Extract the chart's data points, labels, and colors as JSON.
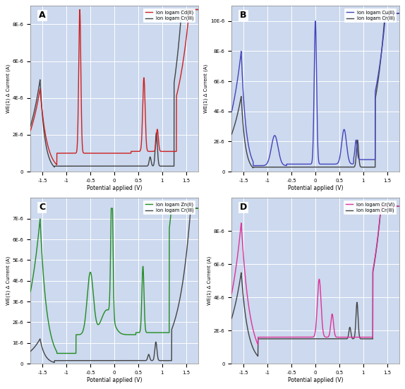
{
  "bg_color": "#ccd9ee",
  "grid_color": "#ffffff",
  "xlim": [
    -1.75,
    1.75
  ],
  "xlabel": "Potential applied (V)",
  "ylabel": "WE(1) Δ Current (A)",
  "panels": [
    {
      "label": "A",
      "line1_color": "#cc2222",
      "line1_label": "Ion logam Cd(II)",
      "line2_color": "#444444",
      "line2_label": "Ion logam Cr(III)",
      "ylim": [
        0,
        9e-06
      ],
      "yticks": [
        0,
        2e-06,
        4e-06,
        6e-06,
        8e-06
      ],
      "ytick_labels": [
        "0",
        "2E-6",
        "4E-6",
        "6E-6",
        "8E-6"
      ]
    },
    {
      "label": "B",
      "line1_color": "#4444bb",
      "line1_label": "Ion logam Cu(II)",
      "line2_color": "#444444",
      "line2_label": "Ion logam Cr(III)",
      "ylim": [
        0,
        1.1e-05
      ],
      "yticks": [
        0,
        2e-06,
        4e-06,
        6e-06,
        8e-06,
        1e-05
      ],
      "ytick_labels": [
        "0",
        "2E-6",
        "4E-6",
        "6E-6",
        "8E-6",
        "10E-6"
      ]
    },
    {
      "label": "C",
      "line1_color": "#228B22",
      "line1_label": "Ion logam Zn(II)",
      "line2_color": "#444444",
      "line2_label": "Ion logam Cr(III)",
      "ylim": [
        0,
        8e-06
      ],
      "yticks": [
        0,
        1e-06,
        2e-06,
        3e-06,
        4e-06,
        5e-06,
        6e-06,
        7e-06
      ],
      "ytick_labels": [
        "0",
        "1E-6",
        "2E-6",
        "3E-6",
        "4E-6",
        "5E-6",
        "6E-6",
        "7E-6"
      ]
    },
    {
      "label": "D",
      "line1_color": "#dd3399",
      "line1_label": "Ion logam Cr(VI)",
      "line2_color": "#444444",
      "line2_label": "Ion logam Cr(III)",
      "ylim": [
        0,
        1e-05
      ],
      "yticks": [
        0,
        2e-06,
        4e-06,
        6e-06,
        8e-06
      ],
      "ytick_labels": [
        "0",
        "2E-6",
        "4E-6",
        "6E-6",
        "8E-6"
      ]
    }
  ]
}
